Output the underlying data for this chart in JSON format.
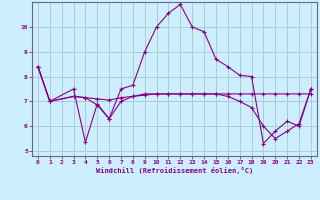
{
  "background_color": "#cceeff",
  "grid_color": "#aacccc",
  "line_color": "#880088",
  "xlabel": "Windchill (Refroidissement éolien,°C)",
  "xlim": [
    -0.5,
    23.5
  ],
  "ylim": [
    4.8,
    11.0
  ],
  "yticks": [
    5,
    6,
    7,
    8,
    9,
    10
  ],
  "xticks": [
    0,
    1,
    2,
    3,
    4,
    5,
    6,
    7,
    8,
    9,
    10,
    11,
    12,
    13,
    14,
    15,
    16,
    17,
    18,
    19,
    20,
    21,
    22,
    23
  ],
  "line1_x": [
    0,
    1,
    3,
    4,
    5,
    6,
    7,
    8,
    9,
    10,
    11,
    12,
    13,
    14,
    15,
    16,
    17,
    18,
    19,
    20,
    21,
    22,
    23
  ],
  "line1_y": [
    8.4,
    7.0,
    7.5,
    5.35,
    6.9,
    6.3,
    7.5,
    7.65,
    9.0,
    10.0,
    10.55,
    10.9,
    10.0,
    9.8,
    8.7,
    8.4,
    8.05,
    8.0,
    5.3,
    5.8,
    6.2,
    6.0,
    7.5
  ],
  "line2_x": [
    0,
    1,
    3,
    4,
    5,
    6,
    7,
    8,
    9,
    10,
    11,
    12,
    13,
    14,
    15,
    16,
    17,
    18,
    19,
    20,
    21,
    22,
    23
  ],
  "line2_y": [
    8.4,
    7.0,
    7.2,
    7.15,
    7.1,
    7.05,
    7.15,
    7.2,
    7.25,
    7.3,
    7.3,
    7.3,
    7.3,
    7.3,
    7.3,
    7.3,
    7.3,
    7.3,
    7.3,
    7.3,
    7.3,
    7.3,
    7.3
  ],
  "line3_x": [
    0,
    1,
    3,
    4,
    5,
    6,
    7,
    8,
    9,
    10,
    11,
    12,
    13,
    14,
    15,
    16,
    17,
    18,
    19,
    20,
    21,
    22,
    23
  ],
  "line3_y": [
    8.4,
    7.0,
    7.2,
    7.15,
    6.85,
    6.3,
    7.0,
    7.2,
    7.3,
    7.3,
    7.3,
    7.3,
    7.3,
    7.3,
    7.3,
    7.2,
    7.0,
    6.75,
    6.0,
    5.5,
    5.8,
    6.1,
    7.5
  ]
}
